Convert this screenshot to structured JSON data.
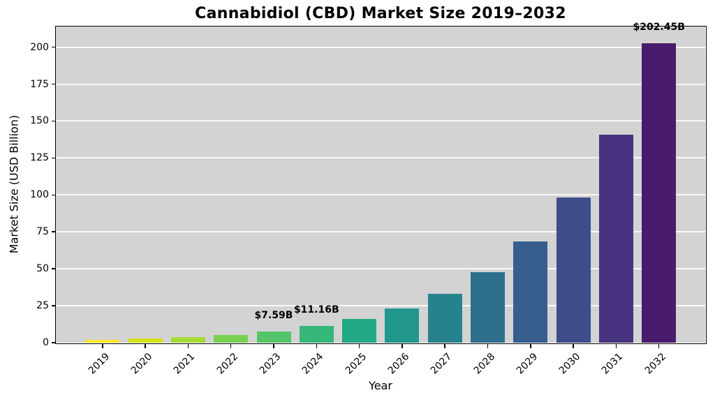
{
  "chart_data": {
    "type": "bar",
    "title": "Cannabidiol (CBD) Market Size 2019–2032",
    "xlabel": "Year",
    "ylabel": "Market Size (USD Billion)",
    "categories": [
      "2019",
      "2020",
      "2021",
      "2022",
      "2023",
      "2024",
      "2025",
      "2026",
      "2027",
      "2028",
      "2029",
      "2030",
      "2031",
      "2032"
    ],
    "values": [
      1.8,
      2.6,
      3.7,
      5.3,
      7.59,
      11.16,
      16.0,
      23.0,
      33.1,
      47.5,
      68.3,
      98.1,
      140.9,
      202.45
    ],
    "bar_colors": [
      "#fde725",
      "#d2e21b",
      "#a5db36",
      "#7ad151",
      "#54c568",
      "#35b779",
      "#23a884",
      "#21968d",
      "#26838e",
      "#2e6f8e",
      "#355e8d",
      "#3e4c8a",
      "#46327e",
      "#481b6d"
    ],
    "yticks": [
      0,
      25,
      50,
      75,
      100,
      125,
      150,
      175,
      200
    ],
    "ylim": [
      0,
      214
    ],
    "grid": true,
    "gridline_color": "rgba(255,255,255,0.85)",
    "plot_background": "#d3d3d3",
    "legend": "none",
    "annotations": [
      {
        "category": "2023",
        "text": "$7.59B"
      },
      {
        "category": "2024",
        "text": "$11.16B"
      },
      {
        "category": "2032",
        "text": "$202.45B"
      }
    ]
  }
}
